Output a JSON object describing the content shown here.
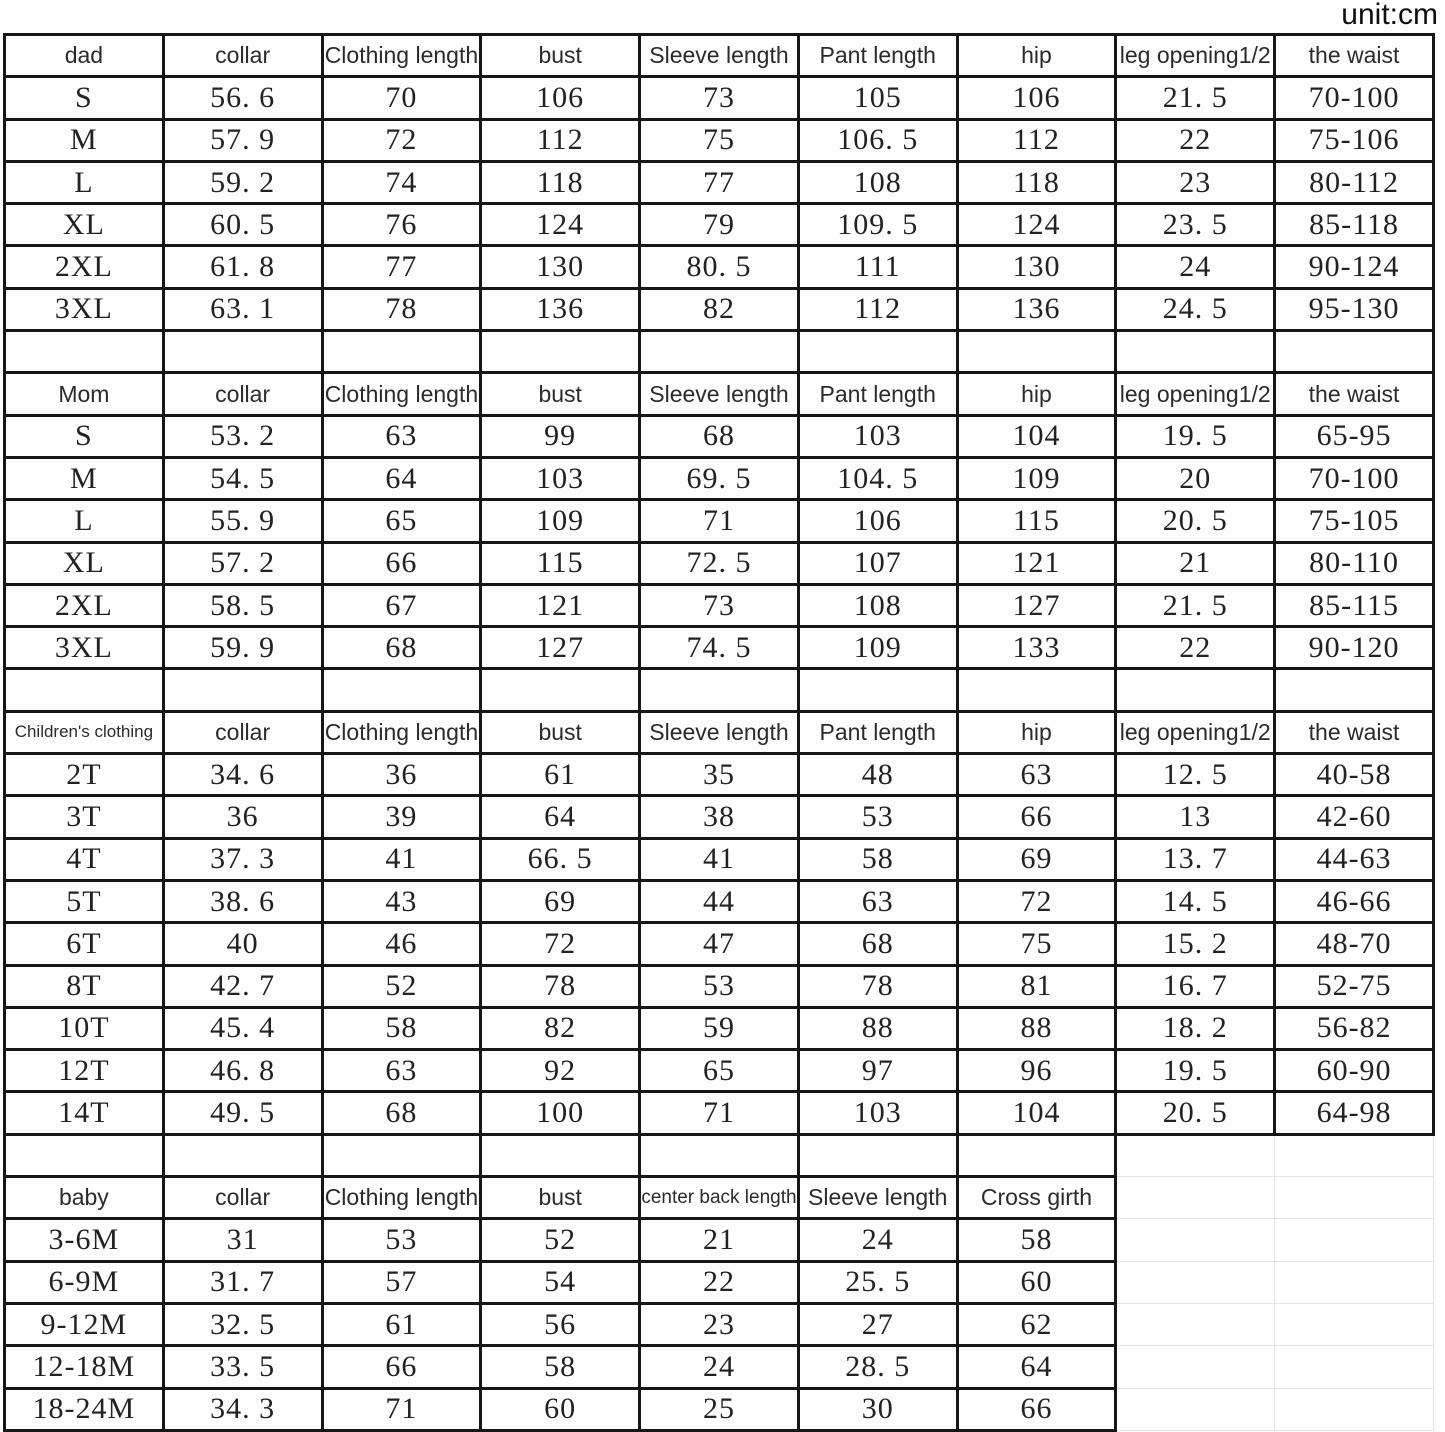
{
  "unit_label": "unit:cm",
  "border_color": "#161616",
  "faint_grid_color": "#e4e4e4",
  "sections": [
    {
      "id": "dad",
      "header_first": "dad",
      "columns": [
        "collar",
        "Clothing length",
        "bust",
        "Sleeve length",
        "Pant length",
        "hip",
        "leg opening1/2",
        "the waist"
      ],
      "rows": [
        {
          "size": "S",
          "values": [
            "56. 6",
            "70",
            "106",
            "73",
            "105",
            "106",
            "21. 5",
            "70-100"
          ]
        },
        {
          "size": "M",
          "values": [
            "57. 9",
            "72",
            "112",
            "75",
            "106. 5",
            "112",
            "22",
            "75-106"
          ]
        },
        {
          "size": "L",
          "values": [
            "59. 2",
            "74",
            "118",
            "77",
            "108",
            "118",
            "23",
            "80-112"
          ]
        },
        {
          "size": "XL",
          "values": [
            "60. 5",
            "76",
            "124",
            "79",
            "109. 5",
            "124",
            "23. 5",
            "85-118"
          ]
        },
        {
          "size": "2XL",
          "values": [
            "61. 8",
            "77",
            "130",
            "80. 5",
            "111",
            "130",
            "24",
            "90-124"
          ]
        },
        {
          "size": "3XL",
          "values": [
            "63. 1",
            "78",
            "136",
            "82",
            "112",
            "136",
            "24. 5",
            "95-130"
          ]
        }
      ]
    },
    {
      "id": "mom",
      "header_first": "Mom",
      "columns": [
        "collar",
        "Clothing length",
        "bust",
        "Sleeve length",
        "Pant length",
        "hip",
        "leg opening1/2",
        "the waist"
      ],
      "rows": [
        {
          "size": "S",
          "values": [
            "53. 2",
            "63",
            "99",
            "68",
            "103",
            "104",
            "19. 5",
            "65-95"
          ]
        },
        {
          "size": "M",
          "values": [
            "54. 5",
            "64",
            "103",
            "69. 5",
            "104. 5",
            "109",
            "20",
            "70-100"
          ]
        },
        {
          "size": "L",
          "values": [
            "55. 9",
            "65",
            "109",
            "71",
            "106",
            "115",
            "20. 5",
            "75-105"
          ]
        },
        {
          "size": "XL",
          "values": [
            "57. 2",
            "66",
            "115",
            "72. 5",
            "107",
            "121",
            "21",
            "80-110"
          ]
        },
        {
          "size": "2XL",
          "values": [
            "58. 5",
            "67",
            "121",
            "73",
            "108",
            "127",
            "21. 5",
            "85-115"
          ]
        },
        {
          "size": "3XL",
          "values": [
            "59. 9",
            "68",
            "127",
            "74. 5",
            "109",
            "133",
            "22",
            "90-120"
          ]
        }
      ]
    },
    {
      "id": "children",
      "header_first": "Children's clothing",
      "columns": [
        "collar",
        "Clothing length",
        "bust",
        "Sleeve length",
        "Pant length",
        "hip",
        "leg opening1/2",
        "the waist"
      ],
      "rows": [
        {
          "size": "2T",
          "values": [
            "34. 6",
            "36",
            "61",
            "35",
            "48",
            "63",
            "12. 5",
            "40-58"
          ]
        },
        {
          "size": "3T",
          "values": [
            "36",
            "39",
            "64",
            "38",
            "53",
            "66",
            "13",
            "42-60"
          ]
        },
        {
          "size": "4T",
          "values": [
            "37. 3",
            "41",
            "66. 5",
            "41",
            "58",
            "69",
            "13. 7",
            "44-63"
          ]
        },
        {
          "size": "5T",
          "values": [
            "38. 6",
            "43",
            "69",
            "44",
            "63",
            "72",
            "14. 5",
            "46-66"
          ]
        },
        {
          "size": "6T",
          "values": [
            "40",
            "46",
            "72",
            "47",
            "68",
            "75",
            "15. 2",
            "48-70"
          ]
        },
        {
          "size": "8T",
          "values": [
            "42. 7",
            "52",
            "78",
            "53",
            "78",
            "81",
            "16. 7",
            "52-75"
          ]
        },
        {
          "size": "10T",
          "values": [
            "45. 4",
            "58",
            "82",
            "59",
            "88",
            "88",
            "18. 2",
            "56-82"
          ]
        },
        {
          "size": "12T",
          "values": [
            "46. 8",
            "63",
            "92",
            "65",
            "97",
            "96",
            "19. 5",
            "60-90"
          ]
        },
        {
          "size": "14T",
          "values": [
            "49. 5",
            "68",
            "100",
            "71",
            "103",
            "104",
            "20. 5",
            "64-98"
          ]
        }
      ]
    },
    {
      "id": "baby",
      "header_first": "baby",
      "columns": [
        "collar",
        "Clothing length",
        "bust",
        "center back length",
        "Sleeve length",
        "Cross girth"
      ],
      "rows": [
        {
          "size": "3-6M",
          "values": [
            "31",
            "53",
            "52",
            "21",
            "24",
            "58"
          ]
        },
        {
          "size": "6-9M",
          "values": [
            "31. 7",
            "57",
            "54",
            "22",
            "25. 5",
            "60"
          ]
        },
        {
          "size": "9-12M",
          "values": [
            "32. 5",
            "61",
            "56",
            "23",
            "27",
            "62"
          ]
        },
        {
          "size": "12-18M",
          "values": [
            "33. 5",
            "66",
            "58",
            "24",
            "28. 5",
            "64"
          ]
        },
        {
          "size": "18-24M",
          "values": [
            "34. 3",
            "71",
            "60",
            "25",
            "30",
            "66"
          ]
        }
      ]
    }
  ]
}
